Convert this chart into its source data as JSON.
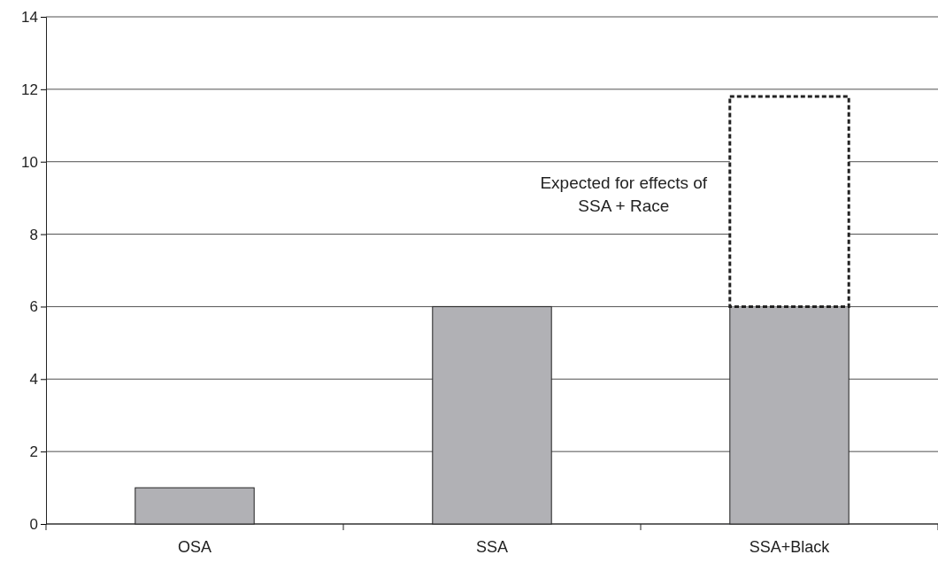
{
  "chart_data": {
    "type": "bar",
    "stacked": true,
    "categories": [
      "OSA",
      "SSA",
      "SSA+Black"
    ],
    "series": [
      {
        "color": "#b1b1b5",
        "values": [
          1,
          6,
          6
        ]
      },
      {
        "color": "#ffffff",
        "line_style": "dashed",
        "values": [
          null,
          null,
          5.8
        ]
      }
    ],
    "ylim": [
      0,
      14
    ],
    "yticks": [
      0,
      2,
      4,
      6,
      8,
      10,
      12,
      14
    ],
    "grid": "y",
    "annotations": [
      "Expected for effects of SSA + Race"
    ]
  }
}
